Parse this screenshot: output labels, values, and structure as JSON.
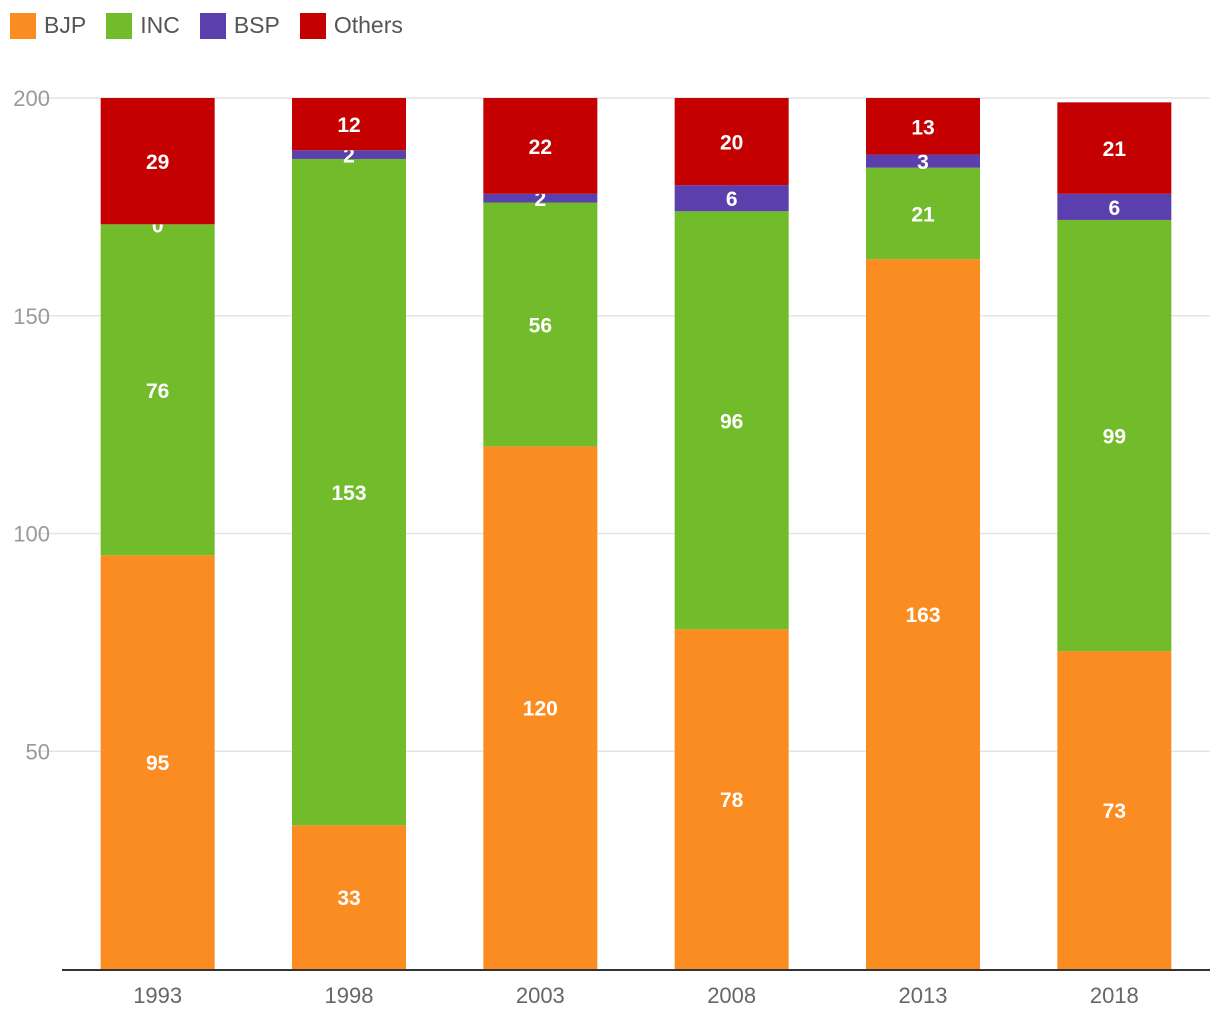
{
  "chart_data": {
    "type": "bar",
    "stacked": true,
    "categories": [
      "1993",
      "1998",
      "2003",
      "2008",
      "2013",
      "2018"
    ],
    "series": [
      {
        "name": "BJP",
        "color": "#fa8c22",
        "values": [
          95,
          33,
          120,
          78,
          163,
          73
        ]
      },
      {
        "name": "INC",
        "color": "#72bb2b",
        "values": [
          76,
          153,
          56,
          96,
          21,
          99
        ]
      },
      {
        "name": "BSP",
        "color": "#5b3fad",
        "values": [
          0,
          2,
          2,
          6,
          3,
          6
        ]
      },
      {
        "name": "Others",
        "color": "#c40000",
        "values": [
          29,
          12,
          22,
          20,
          13,
          21
        ]
      }
    ],
    "ylim": [
      0,
      200
    ],
    "yticks": [
      "50",
      "100",
      "150",
      "200"
    ],
    "legend_position": "top-left",
    "grid": true,
    "title": "",
    "xlabel": "",
    "ylabel": ""
  }
}
